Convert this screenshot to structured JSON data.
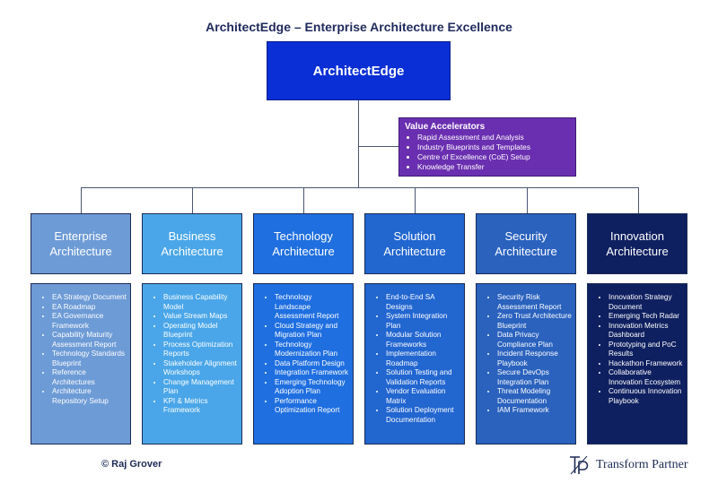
{
  "title": "ArchitectEdge – Enterprise Architecture Excellence",
  "root": {
    "label": "ArchitectEdge",
    "color": "#0a2fd6"
  },
  "value_accelerators": {
    "title": "Value Accelerators",
    "color": "#6a2fb0",
    "items": [
      "Rapid Assessment and Analysis",
      "Industry Blueprints and Templates",
      "Centre of Excellence (CoE) Setup",
      "Knowledge Transfer"
    ]
  },
  "columns": [
    {
      "label": "Enterprise Architecture",
      "color": "#6d9bd6",
      "items": [
        "EA Strategy Document",
        "EA Roadmap",
        "EA Governance Framework",
        "Capability Maturity Assessment Report",
        "Technology Standards Blueprint",
        "Reference Architectures",
        "Architecture Repository Setup"
      ]
    },
    {
      "label": "Business Architecture",
      "color": "#4aa6e8",
      "items": [
        "Business Capability Model",
        "Value Stream Maps",
        "Operating Model Blueprint",
        "Process Optimization Reports",
        "Stakeholder Alignment Workshops",
        "Change Management Plan",
        "KPI & Metrics Framework"
      ]
    },
    {
      "label": "Technology Architecture",
      "color": "#1f6fe0",
      "items": [
        "Technology Landscape Assessment Report",
        "Cloud Strategy and Migration Plan",
        "Technology Modernization Plan",
        "Data Platform Design",
        "Integration Framework",
        "Emerging Technology Adoption Plan",
        "Performance Optimization Report"
      ]
    },
    {
      "label": "Solution Architecture",
      "color": "#2266d0",
      "items": [
        "End-to-End SA Designs",
        "System Integration Plan",
        "Modular Solution Frameworks",
        "Implementation Roadmap",
        "Solution Testing and Validation Reports",
        "Vendor Evaluation Matrix",
        "Solution Deployment Documentation"
      ]
    },
    {
      "label": "Security Architecture",
      "color": "#2a62be",
      "items": [
        "Security Risk Assessment Report",
        "Zero Trust Architecture Blueprint",
        "Data Privacy Compliance Plan",
        "Incident Response Playbook",
        "Secure DevOps Integration Plan",
        "Threat Modeling Documentation",
        "IAM Framework"
      ]
    },
    {
      "label": "Innovation Architecture",
      "color": "#0f2060",
      "items": [
        "Innovation Strategy Document",
        "Emerging Tech Radar",
        "Innovation Metrics Dashboard",
        "Prototyping and PoC Results",
        "Hackathon Framework",
        "Collaborative Innovation Ecosystem",
        "Continuous Innovation Playbook"
      ]
    }
  ],
  "footer": {
    "copyright": "© Raj Grover",
    "brand": "Transform Partner",
    "brand_icon": "tp-monogram-icon"
  }
}
